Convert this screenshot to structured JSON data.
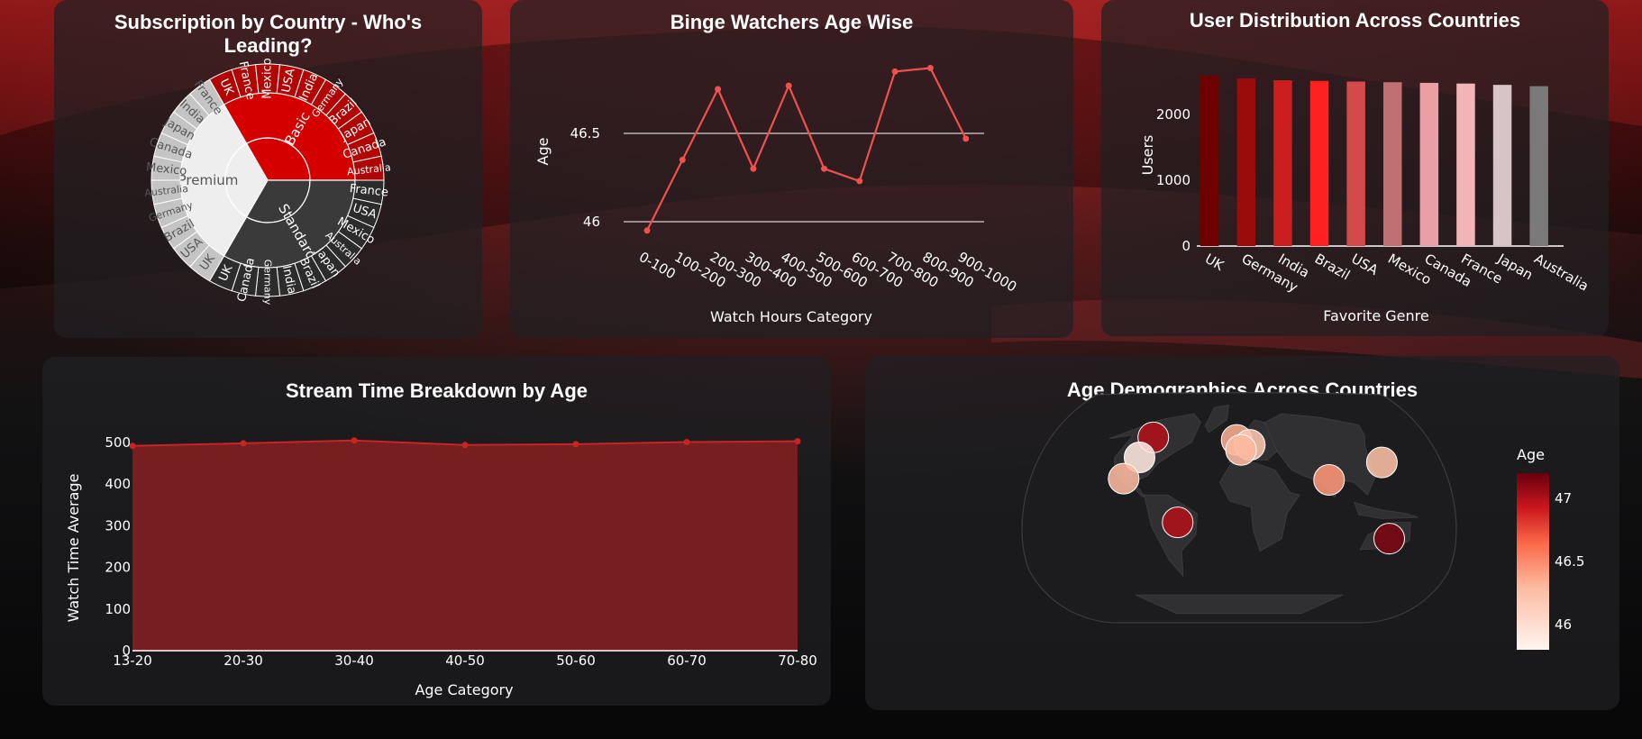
{
  "chart_data": [
    {
      "id": "sunburst",
      "type": "sunburst",
      "title": "Subscription by Country - Who's Leading?",
      "subtitle": "",
      "hierarchy": [
        {
          "name": "Basic",
          "color": "#d40000",
          "children": [
            "UK",
            "France",
            "Mexico",
            "USA",
            "India",
            "Germany",
            "Brazil",
            "Japan",
            "Canada",
            "Australia"
          ]
        },
        {
          "name": "Standard",
          "color": "#3a3a3a",
          "children": [
            "France",
            "USA",
            "Mexico",
            "Australia",
            "Japan",
            "Brazil",
            "India",
            "Germany",
            "Canada",
            "UK"
          ]
        },
        {
          "name": "Premium",
          "color": "#eeeeee",
          "children": [
            "UK",
            "USA",
            "Brazil",
            "Germany",
            "Australia",
            "Mexico",
            "Canada",
            "Japan",
            "India",
            "France"
          ]
        }
      ]
    },
    {
      "id": "binge",
      "type": "line",
      "title": "Binge Watchers Age Wise",
      "xlabel": "Watch Hours Category",
      "ylabel": "Age",
      "categories": [
        "0-100",
        "100-200",
        "200-300",
        "300-400",
        "400-500",
        "500-600",
        "600-700",
        "700-800",
        "800-900",
        "900-1000"
      ],
      "values": [
        45.95,
        46.35,
        46.75,
        46.3,
        46.77,
        46.3,
        46.23,
        46.85,
        46.87,
        46.47
      ],
      "yticks": [
        46,
        46.5
      ],
      "ylim": [
        45.9,
        46.98
      ],
      "grid": true,
      "color": "#ef5050"
    },
    {
      "id": "users",
      "type": "bar",
      "title": "User Distribution Across Countries",
      "xlabel": "Favorite Genre",
      "ylabel": "Users",
      "categories": [
        "UK",
        "Germany",
        "India",
        "Brazil",
        "USA",
        "Mexico",
        "Canada",
        "France",
        "Japan",
        "Australia"
      ],
      "values": [
        2590,
        2550,
        2520,
        2510,
        2500,
        2490,
        2480,
        2470,
        2450,
        2430
      ],
      "colors": [
        "#6e0000",
        "#9a0c0c",
        "#cb1e1e",
        "#ff2020",
        "#d24a4a",
        "#c07070",
        "#e8a0a4",
        "#f2b4b6",
        "#d6c4c6",
        "#7a7a7a"
      ],
      "yticks": [
        0,
        1000,
        2000
      ],
      "ylim": [
        0,
        2800
      ]
    },
    {
      "id": "stream",
      "type": "area",
      "title": "Stream Time Breakdown by Age",
      "xlabel": "Age Category",
      "ylabel": "Watch Time Average",
      "categories": [
        "13-20",
        "20-30",
        "30-40",
        "40-50",
        "50-60",
        "60-70",
        "70-80"
      ],
      "values": [
        492,
        498,
        505,
        494,
        496,
        501,
        503
      ],
      "yticks": [
        0,
        100,
        200,
        300,
        400,
        500
      ],
      "ylim": [
        0,
        520
      ],
      "color": "#c82424",
      "fill": "#7b1f21"
    },
    {
      "id": "geo",
      "type": "scatter",
      "title": "Age Demographics Across Countries",
      "colorbar_title": "Age",
      "colorbar_ticks": [
        46,
        46.5,
        47
      ],
      "colorbar_range": [
        45.8,
        47.2
      ],
      "points": [
        {
          "country": "Canada",
          "lat": 56,
          "lon": -106,
          "age": 47.0
        },
        {
          "country": "USA",
          "lat": 40,
          "lon": -100,
          "age": 45.9
        },
        {
          "country": "Mexico",
          "lat": 23,
          "lon": -102,
          "age": 46.3
        },
        {
          "country": "Brazil",
          "lat": -12,
          "lon": -52,
          "age": 47.0
        },
        {
          "country": "UK",
          "lat": 54,
          "lon": -3,
          "age": 46.35
        },
        {
          "country": "Germany",
          "lat": 50,
          "lon": 12,
          "age": 46.2
        },
        {
          "country": "France",
          "lat": 46,
          "lon": 2,
          "age": 46.3
        },
        {
          "country": "India",
          "lat": 22,
          "lon": 79,
          "age": 46.45
        },
        {
          "country": "Japan",
          "lat": 36,
          "lon": 138,
          "age": 46.25
        },
        {
          "country": "Australia",
          "lat": -25,
          "lon": 134,
          "age": 47.15
        }
      ]
    }
  ]
}
